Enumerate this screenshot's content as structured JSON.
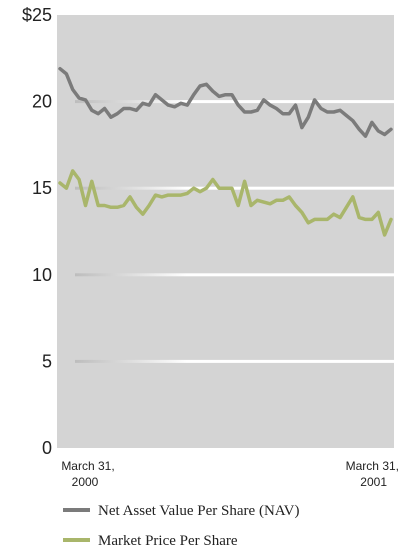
{
  "chart_data": {
    "type": "line",
    "title": "",
    "xlabel": "",
    "ylabel": "",
    "ylim": [
      0,
      25
    ],
    "y_ticks": [
      "0",
      "5",
      "10",
      "15",
      "20",
      "$25"
    ],
    "x_tick_labels": [
      {
        "line1": "March 31,",
        "line2": "2000"
      },
      {
        "line1": "March 31,",
        "line2": "2001"
      }
    ],
    "grid": "horizontal",
    "legend_position": "bottom",
    "series": [
      {
        "name": "Net Asset Value Per Share (NAV)",
        "color": "#7b7b7b",
        "values": [
          21.9,
          21.6,
          20.7,
          20.2,
          20.1,
          19.5,
          19.3,
          19.6,
          19.1,
          19.3,
          19.6,
          19.6,
          19.5,
          19.9,
          19.8,
          20.4,
          20.1,
          19.8,
          19.7,
          19.9,
          19.8,
          20.4,
          20.9,
          21.0,
          20.6,
          20.3,
          20.4,
          20.4,
          19.8,
          19.4,
          19.4,
          19.5,
          20.1,
          19.8,
          19.6,
          19.3,
          19.3,
          19.8,
          18.5,
          19.1,
          20.1,
          19.6,
          19.4,
          19.4,
          19.5,
          19.2,
          18.9,
          18.4,
          18.0,
          18.8,
          18.3,
          18.1,
          18.4
        ]
      },
      {
        "name": "Market Price Per Share",
        "color": "#a9b66b",
        "values": [
          15.3,
          15.0,
          16.0,
          15.5,
          14.0,
          15.4,
          14.0,
          14.0,
          13.9,
          13.9,
          14.0,
          14.5,
          13.9,
          13.5,
          14.0,
          14.6,
          14.5,
          14.6,
          14.6,
          14.6,
          14.7,
          15.0,
          14.8,
          15.0,
          15.5,
          15.0,
          15.0,
          15.0,
          14.0,
          15.4,
          14.0,
          14.3,
          14.2,
          14.1,
          14.3,
          14.3,
          14.5,
          14.0,
          13.6,
          13.0,
          13.2,
          13.2,
          13.2,
          13.5,
          13.3,
          13.9,
          14.5,
          13.3,
          13.2,
          13.2,
          13.6,
          12.3,
          13.2
        ]
      }
    ]
  }
}
